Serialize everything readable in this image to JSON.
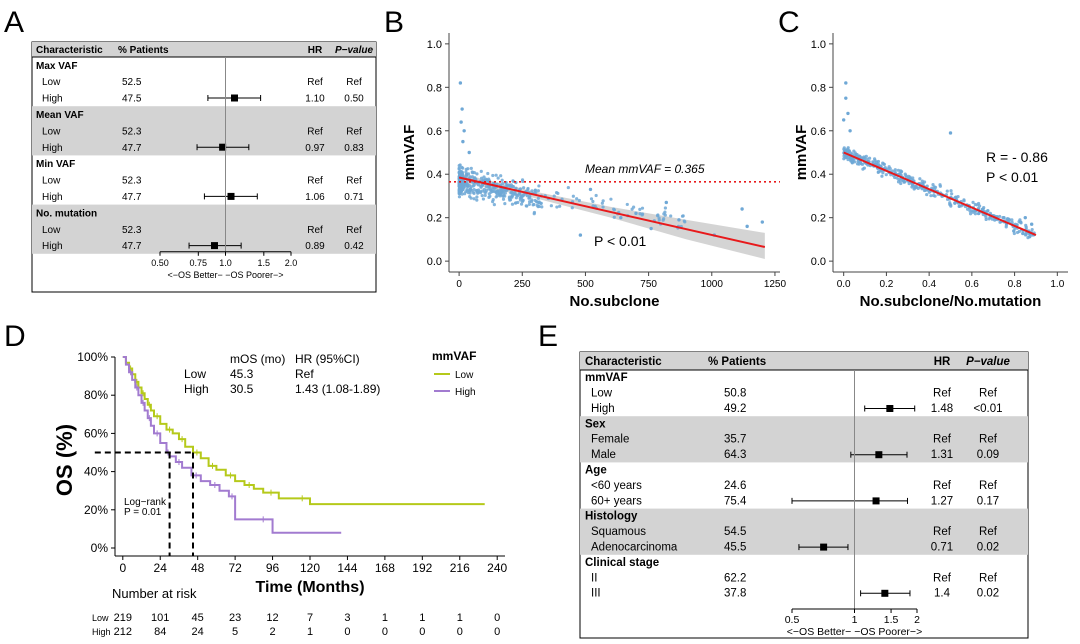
{
  "colors": {
    "forest_band": "#d3d3d3",
    "scatter_point": "#6fa8d6",
    "fit_line": "#e8191b",
    "mean_line": "#e8191b",
    "ci_band": "#c9c9c9",
    "km_low": "#b5c91a",
    "km_high": "#a27bd0",
    "text": "#000000"
  },
  "chart_data": [
    {
      "panel": "A",
      "type": "table",
      "subtype": "forest",
      "columns": {
        "characteristic": "Characteristic",
        "pct": "% Patients",
        "hr": "HR",
        "p": "P−value"
      },
      "groups": [
        {
          "name": "Max VAF",
          "rows": [
            {
              "label": "Low",
              "pct": "52.5",
              "hr_text": "Ref",
              "p_text": "Ref",
              "hr": null,
              "lo": null,
              "hi": null
            },
            {
              "label": "High",
              "pct": "47.5",
              "hr_text": "1.10",
              "p_text": "0.50",
              "hr": 1.1,
              "lo": 0.83,
              "hi": 1.45
            }
          ]
        },
        {
          "name": "Mean VAF",
          "rows": [
            {
              "label": "Low",
              "pct": "52.3",
              "hr_text": "Ref",
              "p_text": "Ref",
              "hr": null,
              "lo": null,
              "hi": null
            },
            {
              "label": "High",
              "pct": "47.7",
              "hr_text": "0.97",
              "p_text": "0.83",
              "hr": 0.97,
              "lo": 0.74,
              "hi": 1.28
            }
          ]
        },
        {
          "name": "Min VAF",
          "rows": [
            {
              "label": "Low",
              "pct": "52.3",
              "hr_text": "Ref",
              "p_text": "Ref",
              "hr": null,
              "lo": null,
              "hi": null
            },
            {
              "label": "High",
              "pct": "47.7",
              "hr_text": "1.06",
              "p_text": "0.71",
              "hr": 1.06,
              "lo": 0.8,
              "hi": 1.4
            }
          ]
        },
        {
          "name": "No. mutation",
          "rows": [
            {
              "label": "Low",
              "pct": "52.3",
              "hr_text": "Ref",
              "p_text": "Ref",
              "hr": null,
              "lo": null,
              "hi": null
            },
            {
              "label": "High",
              "pct": "47.7",
              "hr_text": "0.89",
              "p_text": "0.42",
              "hr": 0.89,
              "lo": 0.68,
              "hi": 1.18
            }
          ]
        }
      ],
      "xscale": "log",
      "xlim": [
        0.5,
        2.0
      ],
      "xticks": [
        0.5,
        0.75,
        1.0,
        1.5,
        2.0
      ],
      "xtick_labels": [
        "0.50",
        "0.75",
        "1.0",
        "1.5",
        "2.0"
      ],
      "xlabel": "<−OS Better− −OS Poorer−>"
    },
    {
      "panel": "B",
      "type": "scatter",
      "xlabel": "No.subclone",
      "ylabel": "mmVAF",
      "xlim": [
        -40,
        1270
      ],
      "ylim": [
        -0.05,
        1.05
      ],
      "xticks": [
        0,
        250,
        500,
        750,
        1000,
        1250
      ],
      "yticks": [
        0.0,
        0.2,
        0.4,
        0.6,
        0.8,
        1.0
      ],
      "ytick_labels": [
        "0.0",
        "0.2",
        "0.4",
        "0.6",
        "0.8",
        "1.0"
      ],
      "fit": {
        "x0": 0,
        "y0": 0.385,
        "x1": 1210,
        "y1": 0.065
      },
      "ci": [
        {
          "x": 0,
          "lo": 0.365,
          "hi": 0.405
        },
        {
          "x": 300,
          "lo": 0.29,
          "hi": 0.32
        },
        {
          "x": 600,
          "lo": 0.2,
          "hi": 0.25
        },
        {
          "x": 900,
          "lo": 0.1,
          "hi": 0.19
        },
        {
          "x": 1210,
          "lo": 0.01,
          "hi": 0.13
        }
      ],
      "mean_line": 0.365,
      "mean_label": "Mean mmVAF = 0.365",
      "p_label": "P < 0.01",
      "extra_points": [
        {
          "x": 5,
          "y": 0.82
        },
        {
          "x": 12,
          "y": 0.7
        },
        {
          "x": 8,
          "y": 0.64
        },
        {
          "x": 20,
          "y": 0.6
        },
        {
          "x": 15,
          "y": 0.55
        },
        {
          "x": 40,
          "y": 0.5
        },
        {
          "x": 1200,
          "y": 0.18
        },
        {
          "x": 1140,
          "y": 0.16
        },
        {
          "x": 1120,
          "y": 0.24
        },
        {
          "x": 1010,
          "y": 0.12
        },
        {
          "x": 870,
          "y": 0.19
        },
        {
          "x": 820,
          "y": 0.27
        },
        {
          "x": 760,
          "y": 0.15
        },
        {
          "x": 700,
          "y": 0.22
        },
        {
          "x": 640,
          "y": 0.2
        },
        {
          "x": 520,
          "y": 0.33
        },
        {
          "x": 480,
          "y": 0.12
        }
      ]
    },
    {
      "panel": "C",
      "type": "scatter",
      "xlabel": "No.subclone/No.mutation",
      "ylabel": "mmVAF",
      "xlim": [
        -0.05,
        1.05
      ],
      "ylim": [
        -0.05,
        1.05
      ],
      "xticks": [
        0.0,
        0.2,
        0.4,
        0.6,
        0.8,
        1.0
      ],
      "xtick_labels": [
        "0.0",
        "0.2",
        "0.4",
        "0.6",
        "0.8",
        "1.0"
      ],
      "yticks": [
        0.0,
        0.2,
        0.4,
        0.6,
        0.8,
        1.0
      ],
      "ytick_labels": [
        "0.0",
        "0.2",
        "0.4",
        "0.6",
        "0.8",
        "1.0"
      ],
      "fit": {
        "x0": 0,
        "y0": 0.5,
        "x1": 0.9,
        "y1": 0.12
      },
      "r_label": "R = - 0.86",
      "p_label": "P < 0.01",
      "extra_points": [
        {
          "x": 0.01,
          "y": 0.82
        },
        {
          "x": 0.01,
          "y": 0.75
        },
        {
          "x": 0.02,
          "y": 0.68
        },
        {
          "x": 0.0,
          "y": 0.65
        },
        {
          "x": 0.03,
          "y": 0.6
        },
        {
          "x": 0.5,
          "y": 0.59
        },
        {
          "x": 0.88,
          "y": 0.17
        },
        {
          "x": 0.85,
          "y": 0.2
        },
        {
          "x": 0.75,
          "y": 0.2
        }
      ]
    },
    {
      "panel": "D",
      "type": "line",
      "subtype": "kaplan-meier",
      "ylabel": "OS (%)",
      "xlabel": "Time (Months)",
      "xlim": [
        -5,
        245
      ],
      "ylim": [
        0,
        1
      ],
      "xticks": [
        0,
        24,
        48,
        72,
        96,
        120,
        144,
        168,
        192,
        216,
        240
      ],
      "yticks": [
        0,
        0.2,
        0.4,
        0.6,
        0.8,
        1.0
      ],
      "ytick_labels": [
        "0%",
        "20%",
        "40%",
        "60%",
        "80%",
        "100%"
      ],
      "series": [
        {
          "name": "Low",
          "color_key": "km_low",
          "x": [
            0,
            2,
            4,
            6,
            8,
            10,
            12,
            14,
            16,
            18,
            20,
            24,
            28,
            32,
            36,
            40,
            45,
            50,
            55,
            60,
            66,
            72,
            78,
            84,
            90,
            100,
            110,
            120,
            232
          ],
          "y": [
            1.0,
            0.97,
            0.94,
            0.91,
            0.87,
            0.84,
            0.81,
            0.78,
            0.75,
            0.72,
            0.69,
            0.65,
            0.62,
            0.6,
            0.57,
            0.53,
            0.5,
            0.47,
            0.43,
            0.41,
            0.38,
            0.35,
            0.33,
            0.31,
            0.29,
            0.26,
            0.26,
            0.23,
            0.23
          ]
        },
        {
          "name": "High",
          "color_key": "km_high",
          "x": [
            0,
            2,
            4,
            6,
            8,
            10,
            12,
            14,
            16,
            18,
            20,
            24,
            28,
            30,
            34,
            38,
            44,
            50,
            56,
            62,
            68,
            72,
            84,
            96,
            140
          ],
          "y": [
            1.0,
            0.96,
            0.92,
            0.88,
            0.84,
            0.8,
            0.76,
            0.72,
            0.68,
            0.64,
            0.6,
            0.55,
            0.5,
            0.48,
            0.45,
            0.42,
            0.38,
            0.35,
            0.33,
            0.3,
            0.27,
            0.15,
            0.15,
            0.08,
            0.08
          ]
        }
      ],
      "median_lines": {
        "y": 0.5,
        "x_high": 30,
        "x_low": 45
      },
      "legend_title": "mmVAF",
      "legend": [
        "Low",
        "High"
      ],
      "stats_header": {
        "mos": "mOS (mo)",
        "hr": "HR (95%CI)"
      },
      "stats": [
        {
          "group": "Low",
          "mos": "45.3",
          "hr": "Ref"
        },
        {
          "group": "High",
          "mos": "30.5",
          "hr": "1.43 (1.08-1.89)"
        }
      ],
      "logrank": [
        "Log−rank",
        "P = 0.01"
      ],
      "risk_title": "Number at risk",
      "risk_table": [
        {
          "group": "Low",
          "counts": [
            "219",
            "101",
            "45",
            "23",
            "12",
            "7",
            "3",
            "1",
            "1",
            "1",
            "0"
          ]
        },
        {
          "group": "High",
          "counts": [
            "212",
            "84",
            "24",
            "5",
            "2",
            "1",
            "0",
            "0",
            "0",
            "0",
            "0"
          ]
        }
      ]
    },
    {
      "panel": "E",
      "type": "table",
      "subtype": "forest",
      "columns": {
        "characteristic": "Characteristic",
        "pct": "% Patients",
        "hr": "HR",
        "p": "P−value"
      },
      "groups": [
        {
          "name": "mmVAF",
          "rows": [
            {
              "label": "Low",
              "pct": "50.8",
              "hr_text": "Ref",
              "p_text": "Ref",
              "hr": null,
              "lo": null,
              "hi": null
            },
            {
              "label": "High",
              "pct": "49.2",
              "hr_text": "1.48",
              "p_text": "<0.01",
              "hr": 1.48,
              "lo": 1.12,
              "hi": 1.95
            }
          ]
        },
        {
          "name": "Sex",
          "rows": [
            {
              "label": "Female",
              "pct": "35.7",
              "hr_text": "Ref",
              "p_text": "Ref",
              "hr": null,
              "lo": null,
              "hi": null
            },
            {
              "label": "Male",
              "pct": "64.3",
              "hr_text": "1.31",
              "p_text": "0.09",
              "hr": 1.31,
              "lo": 0.96,
              "hi": 1.79
            }
          ]
        },
        {
          "name": "Age",
          "rows": [
            {
              "label": "<60 years",
              "pct": "24.6",
              "hr_text": "Ref",
              "p_text": "Ref",
              "hr": null,
              "lo": null,
              "hi": null
            },
            {
              "label": "60+ years",
              "pct": "75.4",
              "hr_text": "1.27",
              "p_text": "0.17",
              "hr": 1.27,
              "lo": 0.5,
              "hi": 1.8
            }
          ]
        },
        {
          "name": "Histology",
          "rows": [
            {
              "label": "Squamous",
              "pct": "54.5",
              "hr_text": "Ref",
              "p_text": "Ref",
              "hr": null,
              "lo": null,
              "hi": null
            },
            {
              "label": "Adenocarcinoma",
              "pct": "45.5",
              "hr_text": "0.71",
              "p_text": "0.02",
              "hr": 0.71,
              "lo": 0.54,
              "hi": 0.93
            }
          ]
        },
        {
          "name": "Clinical stage",
          "rows": [
            {
              "label": "II",
              "pct": "62.2",
              "hr_text": "Ref",
              "p_text": "Ref",
              "hr": null,
              "lo": null,
              "hi": null
            },
            {
              "label": "III",
              "pct": "37.8",
              "hr_text": "1.4",
              "p_text": "0.02",
              "hr": 1.4,
              "lo": 1.07,
              "hi": 1.85
            }
          ]
        }
      ],
      "xscale": "log",
      "xlim": [
        0.5,
        2.0
      ],
      "xticks": [
        0.5,
        1.0,
        1.5,
        2.0
      ],
      "xtick_labels": [
        "0.5",
        "1",
        "1.5",
        "2"
      ],
      "xlabel": "<−OS Better− −OS Poorer−>"
    }
  ]
}
